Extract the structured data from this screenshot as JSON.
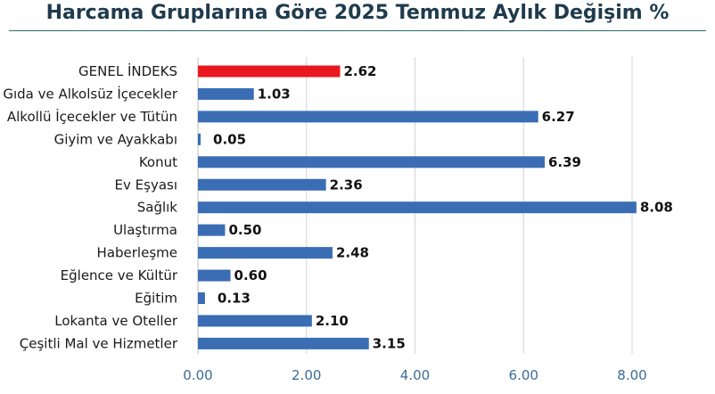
{
  "chart_data": {
    "type": "bar",
    "orientation": "horizontal",
    "title": "Harcama Gruplarına Göre 2025 Temmuz Aylık Değişim %",
    "categories": [
      "GENEL İNDEKS",
      "Gıda ve Alkolsüz İçecekler",
      "Alkollü İçecekler ve Tütün",
      "Giyim ve Ayakkabı",
      "Konut",
      "Ev Eşyası",
      "Sağlık",
      "Ulaştırma",
      "Haberleşme",
      "Eğlence ve Kültür",
      "Eğitim",
      "Lokanta ve Oteller",
      "Çeşitli Mal ve Hizmetler"
    ],
    "values": [
      2.62,
      1.03,
      6.27,
      0.05,
      6.39,
      2.36,
      8.08,
      0.5,
      2.48,
      0.6,
      0.13,
      2.1,
      3.15
    ],
    "value_labels": [
      "2.62",
      "1.03",
      "6.27",
      "0.05",
      "6.39",
      "2.36",
      "8.08",
      "0.50",
      "2.48",
      "0.60",
      "0.13",
      "2.10",
      "3.15"
    ],
    "xlim": [
      0,
      8
    ],
    "x_ticks": [
      0,
      2,
      4,
      6,
      8
    ],
    "x_tick_labels": [
      "0.00",
      "2.00",
      "4.00",
      "6.00",
      "8.00"
    ],
    "grid": "vertical",
    "colors": {
      "bar": "#3a6db4",
      "highlight_bar": "#e8181e",
      "highlight_label": "#d6141b",
      "grid": "#d4d4d4",
      "tick_label": "#3b6b9a",
      "title": "#1f3b4d",
      "title_rule": "#2f6f6f"
    },
    "highlight_index": 0
  }
}
